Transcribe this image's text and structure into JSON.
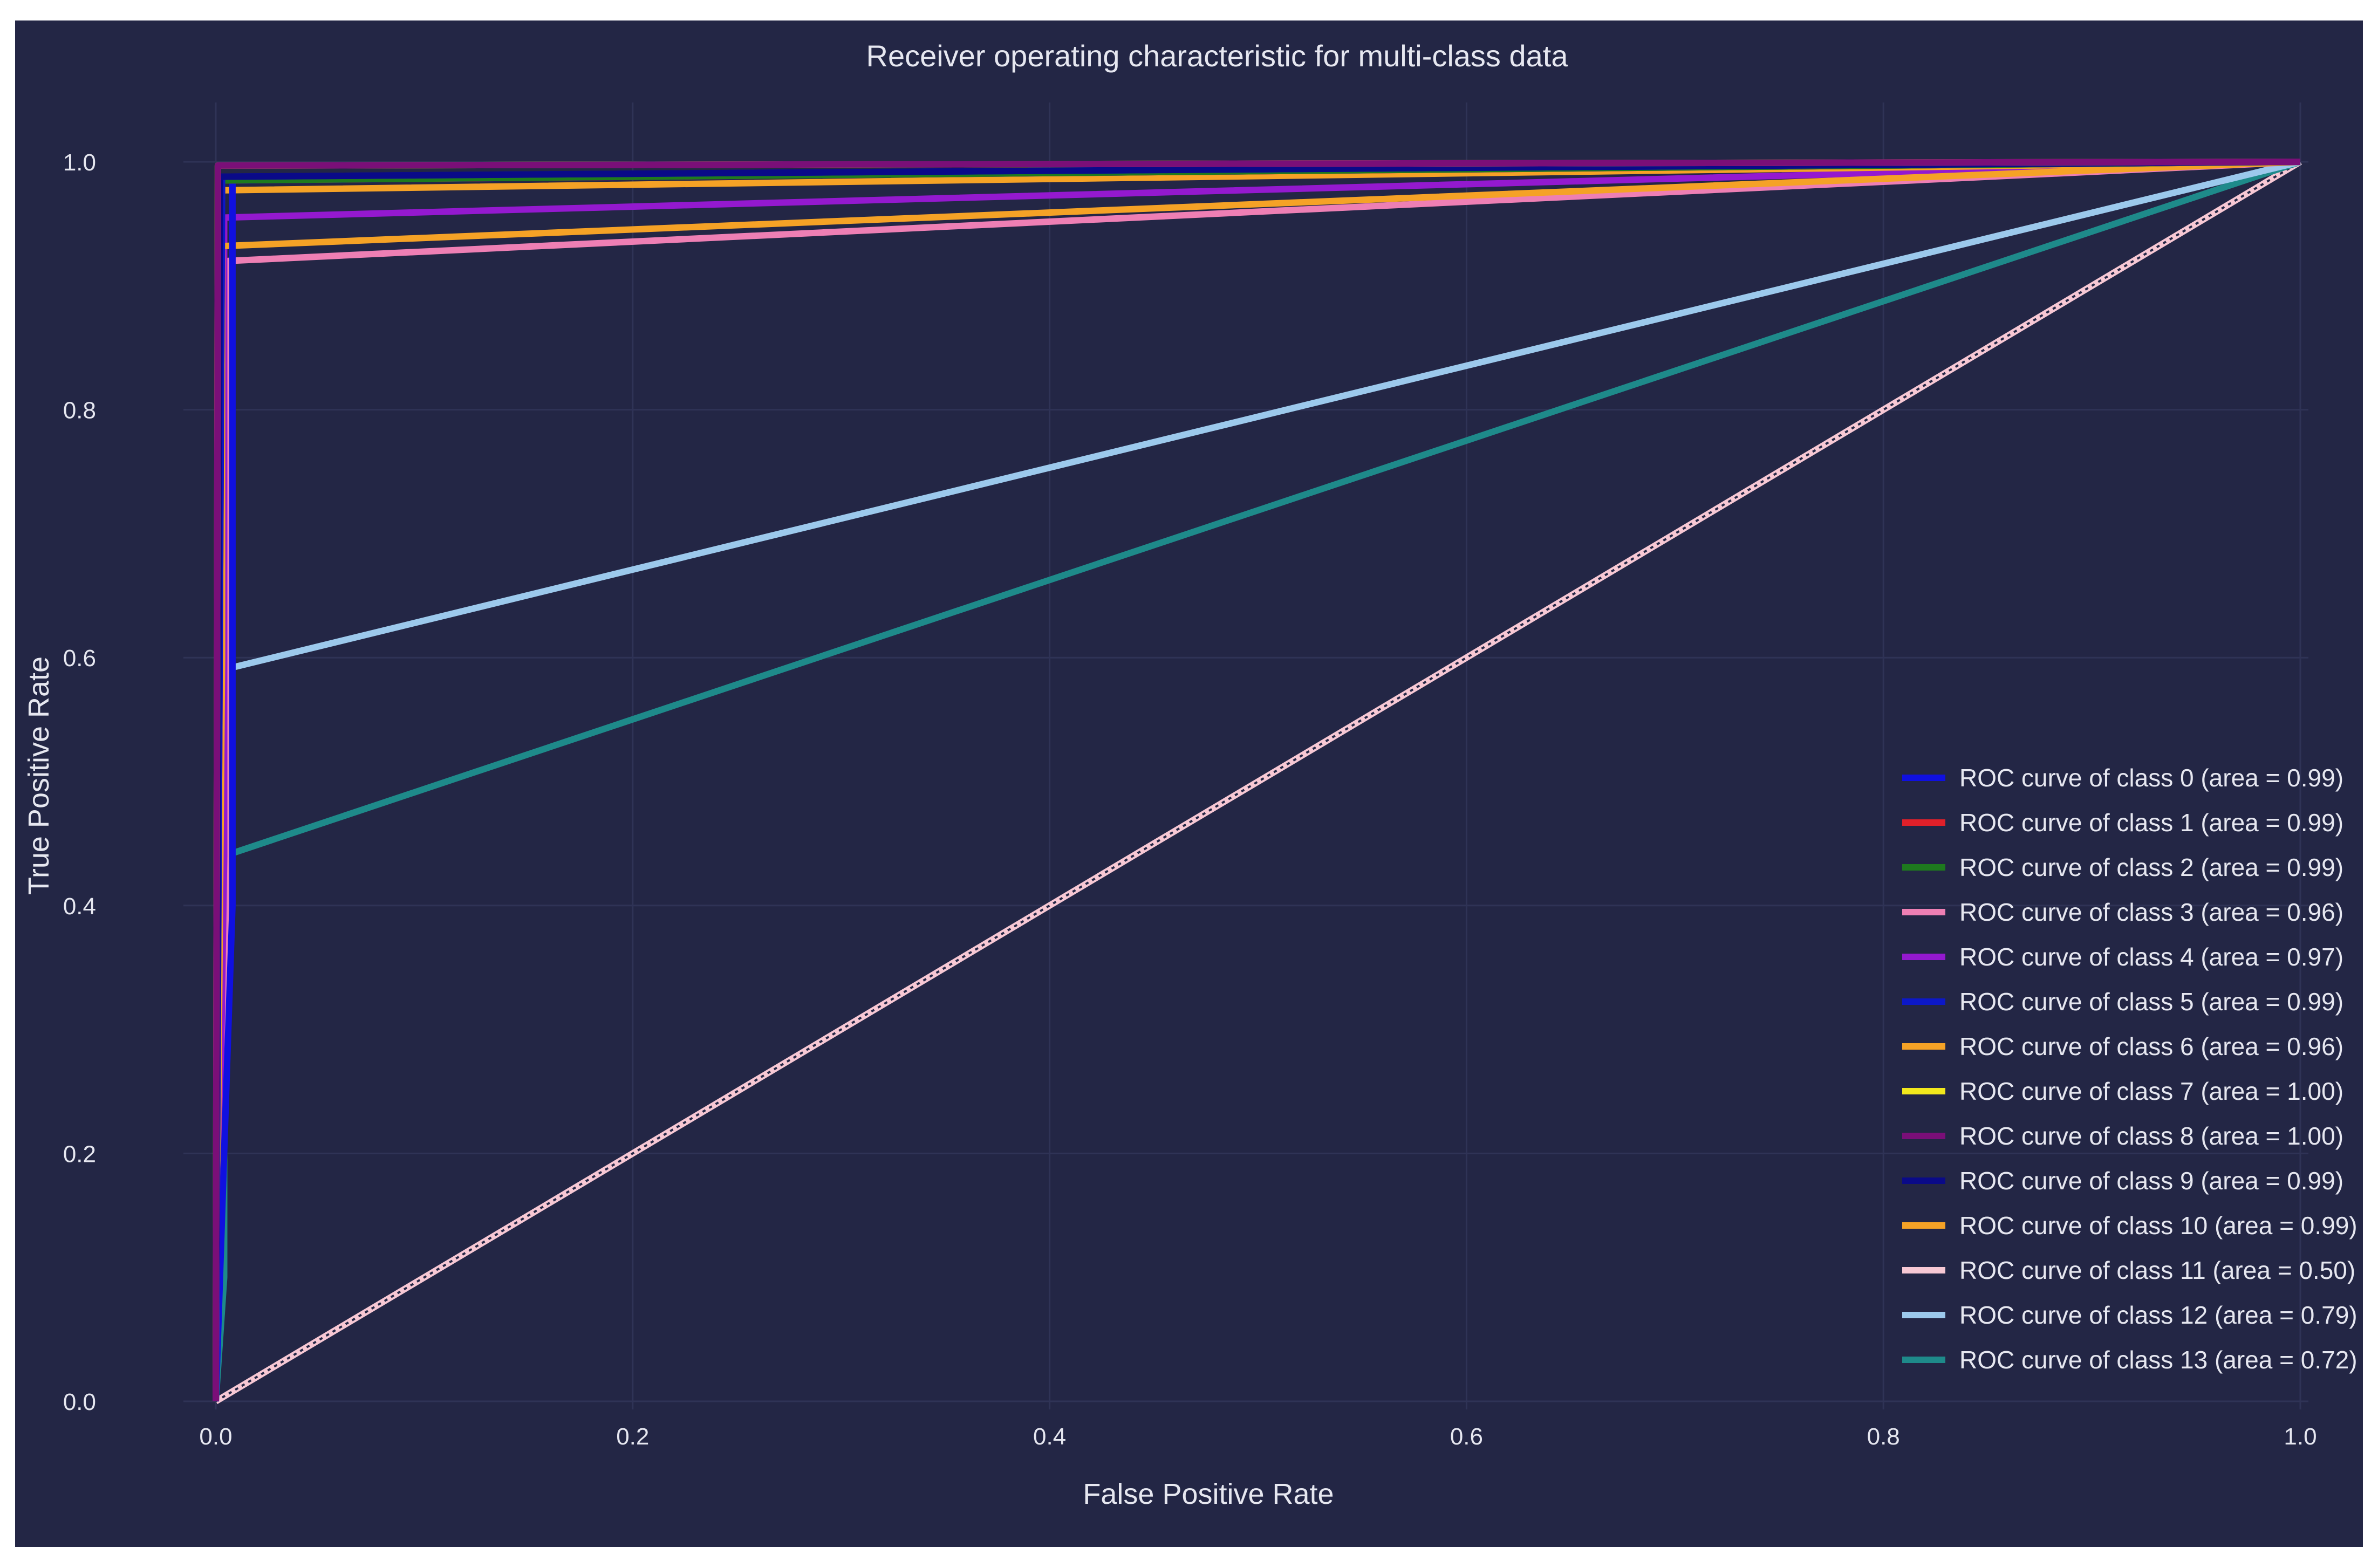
{
  "chart_data": {
    "type": "line",
    "title": "Receiver operating characteristic for multi-class data",
    "xlabel": "False Positive Rate",
    "ylabel": "True Positive Rate",
    "xlim": [
      0,
      1
    ],
    "ylim": [
      0,
      1
    ],
    "x_ticks": [
      "0.0",
      "0.2",
      "0.4",
      "0.6",
      "0.8",
      "1.0"
    ],
    "y_ticks": [
      "0.0",
      "0.2",
      "0.4",
      "0.6",
      "0.8",
      "1.0"
    ],
    "grid": true,
    "legend_position": "bottom-right",
    "series": [
      {
        "name": "ROC curve of class 0 (area = 0.99)",
        "color": "#1010e0",
        "x": [
          0,
          0.008,
          0.008,
          1
        ],
        "y": [
          0,
          0.4,
          0.985,
          1
        ]
      },
      {
        "name": "ROC curve of class 1 (area = 0.99)",
        "color": "#e0202a",
        "x": [
          0,
          0.003,
          0.003,
          1
        ],
        "y": [
          0,
          0.97,
          0.985,
          1
        ]
      },
      {
        "name": "ROC curve of class 2 (area = 0.99)",
        "color": "#1e7a1e",
        "x": [
          0,
          0.002,
          0.002,
          1
        ],
        "y": [
          0,
          0.98,
          0.985,
          1
        ]
      },
      {
        "name": "ROC curve of class 3 (area = 0.96)",
        "color": "#ee7fb4",
        "x": [
          0,
          0.006,
          0.006,
          1
        ],
        "y": [
          0,
          0.45,
          0.92,
          1
        ]
      },
      {
        "name": "ROC curve of class 4 (area = 0.97)",
        "color": "#9419cf",
        "x": [
          0,
          0.004,
          0.004,
          1
        ],
        "y": [
          0,
          0.44,
          0.955,
          1
        ]
      },
      {
        "name": "ROC curve of class 5 (area = 0.99)",
        "color": "#0c18c8",
        "x": [
          0,
          0.003,
          0.003,
          1
        ],
        "y": [
          0,
          0.97,
          0.988,
          1
        ]
      },
      {
        "name": "ROC curve of class 6 (area = 0.96)",
        "color": "#f5a226",
        "x": [
          0,
          0.003,
          0.003,
          1
        ],
        "y": [
          0,
          0.6,
          0.932,
          1
        ]
      },
      {
        "name": "ROC curve of class 7 (area = 1.00)",
        "color": "#f2e81c",
        "x": [
          0,
          0.001,
          0.001,
          1
        ],
        "y": [
          0,
          0.99,
          0.997,
          1
        ]
      },
      {
        "name": "ROC curve of class 8 (area = 1.00)",
        "color": "#7a0f78",
        "x": [
          0,
          0.001,
          0.001,
          1
        ],
        "y": [
          0,
          0.99,
          0.997,
          1
        ]
      },
      {
        "name": "ROC curve of class 9 (area = 0.99)",
        "color": "#0a0a88",
        "x": [
          0,
          0.002,
          0.002,
          1
        ],
        "y": [
          0,
          0.98,
          0.988,
          1
        ]
      },
      {
        "name": "ROC curve of class 10 (area = 0.99)",
        "color": "#f5a226",
        "x": [
          0,
          0.002,
          0.002,
          1
        ],
        "y": [
          0,
          0.97,
          0.977,
          1
        ]
      },
      {
        "name": "ROC curve of class 11 (area = 0.50)",
        "color": "#f7c8d4",
        "dashed": true,
        "x": [
          0,
          1
        ],
        "y": [
          0,
          1
        ]
      },
      {
        "name": "ROC curve of class 12 (area = 0.79)",
        "color": "#9cc9ec",
        "x": [
          0,
          0.003,
          0.003,
          1
        ],
        "y": [
          0,
          0.2,
          0.59,
          1
        ]
      },
      {
        "name": "ROC curve of class 13 (area = 0.72)",
        "color": "#1e8a8a",
        "x": [
          0,
          0.004,
          0.004,
          1
        ],
        "y": [
          0,
          0.1,
          0.44,
          1
        ]
      }
    ]
  }
}
